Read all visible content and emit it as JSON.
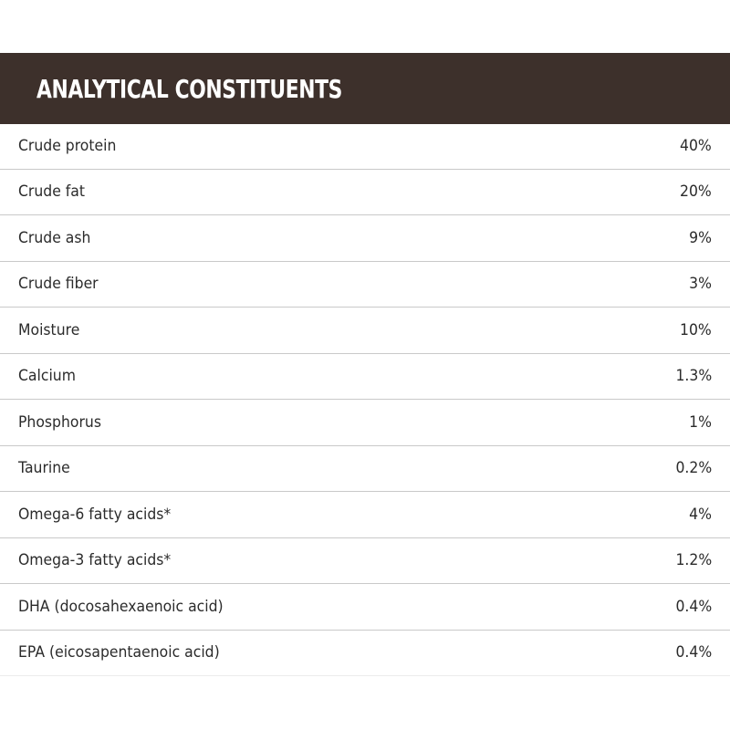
{
  "title": "ANALYTICAL CONSTITUENTS",
  "rows": [
    {
      "name": "Crude protein",
      "value": "40%"
    },
    {
      "name": "Crude fat",
      "value": "20%"
    },
    {
      "name": "Crude ash",
      "value": "9%"
    },
    {
      "name": "Crude fiber",
      "value": "3%"
    },
    {
      "name": "Moisture",
      "value": "10%"
    },
    {
      "name": "Calcium",
      "value": "1.3%"
    },
    {
      "name": "Phosphorus",
      "value": "1%"
    },
    {
      "name": "Taurine",
      "value": "0.2%"
    },
    {
      "name": "Omega-6 fatty acids*",
      "value": "4%"
    },
    {
      "name": "Omega-3 fatty acids*",
      "value": "1.2%"
    },
    {
      "name": "DHA (docosahexaenoic acid)",
      "value": "0.4%"
    },
    {
      "name": "EPA (eicosapentaenoic acid)",
      "value": "0.4%"
    }
  ],
  "colors": {
    "header_background": "#3d302b",
    "header_text": "#ffffff",
    "row_text": "#2b2b2b",
    "divider": "#c9c9c9"
  }
}
